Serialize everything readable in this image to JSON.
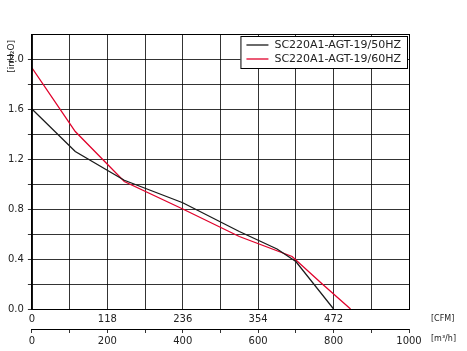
{
  "chart_data": {
    "type": "line",
    "y_label": "[inH₂O]",
    "x_label": "[m³/h]",
    "x2_label": "[CFM]",
    "series": [
      {
        "name": "SC220A1-AGT-19/50HZ",
        "color": "#1a1a1a",
        "x": [
          0,
          115,
          245,
          400,
          550,
          650,
          700,
          800
        ],
        "values": [
          1.6,
          1.26,
          1.03,
          0.85,
          0.62,
          0.48,
          0.38,
          0.0
        ]
      },
      {
        "name": "SC220A1-AGT-19/60HZ",
        "color": "#e0002a",
        "x": [
          0,
          115,
          245,
          400,
          550,
          690,
          770,
          845
        ],
        "values": [
          1.93,
          1.42,
          1.02,
          0.8,
          0.58,
          0.42,
          0.2,
          0.0
        ]
      }
    ],
    "xlim": [
      0,
      1000
    ],
    "xticks": [
      0,
      200,
      400,
      600,
      800,
      1000
    ],
    "x2lim": [
      0,
      590
    ],
    "x2ticks": [
      0,
      118,
      236,
      354,
      472
    ],
    "ylim": [
      0,
      2.2
    ],
    "yticks": [
      {
        "value": 0,
        "label": "0.0"
      },
      {
        "value": 0.4,
        "label": "0.4"
      },
      {
        "value": 0.8,
        "label": "0.8"
      },
      {
        "value": 1.2,
        "label": "1.2"
      },
      {
        "value": 1.6,
        "label": "1.6"
      },
      {
        "value": 2,
        "label": "2.0"
      }
    ],
    "grid": true,
    "legend": "upper right"
  }
}
